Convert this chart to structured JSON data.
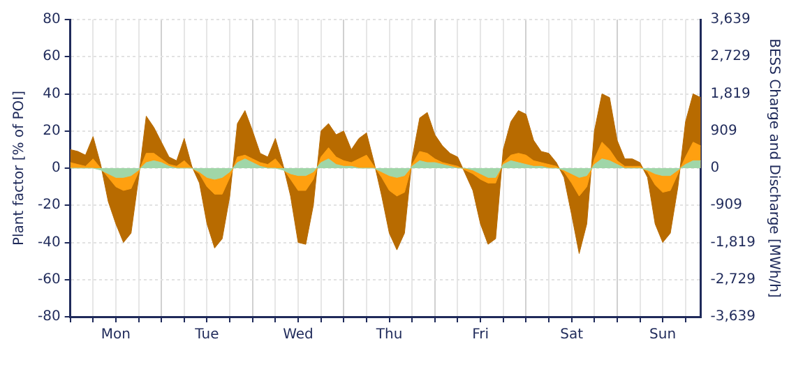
{
  "chart_data": {
    "type": "area",
    "ylabel": "Plant factor [% of POI]",
    "y2label": "BESS Charge and Discharge [MWh/h]",
    "categories": [
      null,
      null,
      null,
      null,
      null,
      null,
      "Mon",
      null,
      null,
      null,
      null,
      null,
      null,
      null,
      null,
      null,
      null,
      null,
      "Tue",
      null,
      null,
      null,
      null,
      null,
      null,
      null,
      null,
      null,
      null,
      null,
      "Wed",
      null,
      null,
      null,
      null,
      null,
      null,
      null,
      null,
      null,
      null,
      null,
      "Thu",
      null,
      null,
      null,
      null,
      null,
      null,
      null,
      null,
      null,
      null,
      null,
      "Fri",
      null,
      null,
      null,
      null,
      null,
      null,
      null,
      null,
      null,
      null,
      null,
      "Sat",
      null,
      null,
      null,
      null,
      null,
      null,
      null,
      null,
      null,
      null,
      null,
      "Sun",
      null,
      null,
      null,
      null,
      null
    ],
    "series": [
      {
        "color": "#b86b00",
        "values": [
          10,
          9,
          7,
          17,
          2,
          -18,
          -30,
          -40,
          -35,
          -5,
          28,
          22,
          14,
          6,
          4,
          16,
          1,
          -8,
          -30,
          -43,
          -38,
          -15,
          24,
          31,
          20,
          8,
          6,
          16,
          2,
          -15,
          -40,
          -41,
          -20,
          20,
          24,
          18,
          20,
          10,
          16,
          19,
          3,
          -15,
          -35,
          -44,
          -35,
          5,
          27,
          30,
          18,
          12,
          8,
          6,
          -3,
          -12,
          -30,
          -41,
          -38,
          10,
          25,
          31,
          29,
          15,
          9,
          8,
          3,
          -5,
          -25,
          -46,
          -30,
          20,
          40,
          38,
          15,
          5,
          5,
          3,
          -5,
          -30,
          -40,
          -35,
          -10,
          25,
          40,
          38
        ]
      },
      {
        "color": "#ffa010",
        "values": [
          3,
          2,
          1,
          5,
          0,
          -5,
          -10,
          -12,
          -11,
          -2,
          8,
          8,
          5,
          2,
          1,
          4,
          0,
          -3,
          -10,
          -14,
          -14,
          -5,
          6,
          7,
          5,
          3,
          2,
          5,
          0,
          -6,
          -12,
          -12,
          -6,
          6,
          11,
          6,
          4,
          3,
          5,
          7,
          1,
          -5,
          -12,
          -15,
          -13,
          2,
          9,
          8,
          5,
          3,
          2,
          1,
          -1,
          -3,
          -6,
          -8,
          -8,
          3,
          7,
          8,
          7,
          4,
          3,
          2,
          1,
          -2,
          -8,
          -15,
          -10,
          5,
          14,
          10,
          4,
          1,
          1,
          1,
          -2,
          -9,
          -13,
          -12,
          -3,
          6,
          14,
          12
        ]
      },
      {
        "color": "#a0d6a8",
        "values": [
          0,
          0,
          0,
          0,
          -1,
          -3,
          -5,
          -5,
          -4,
          -1,
          3,
          4,
          3,
          1,
          0,
          0,
          0,
          -2,
          -5,
          -6,
          -5,
          -2,
          3,
          5,
          3,
          1,
          0,
          0,
          -1,
          -3,
          -4,
          -4,
          -2,
          3,
          5,
          2,
          1,
          1,
          0,
          0,
          0,
          -2,
          -4,
          -5,
          -4,
          1,
          4,
          3,
          3,
          2,
          1,
          0,
          0,
          -1,
          -3,
          -5,
          -5,
          2,
          4,
          3,
          2,
          1,
          1,
          0,
          0,
          -1,
          -3,
          -5,
          -4,
          2,
          5,
          4,
          2,
          0,
          0,
          0,
          -1,
          -3,
          -4,
          -4,
          -1,
          2,
          4,
          4
        ]
      }
    ],
    "ylim": [
      -80,
      80
    ],
    "yticks": [
      -80,
      -60,
      -40,
      -20,
      0,
      20,
      40,
      60,
      80
    ],
    "y2lim": [
      -3639,
      3639
    ],
    "y2ticks": [
      {
        "value": -3639,
        "label": "-3,639"
      },
      {
        "value": -2729,
        "label": "-2,729"
      },
      {
        "value": -1819,
        "label": "-1,819"
      },
      {
        "value": -909,
        "label": "-909"
      },
      {
        "value": 0,
        "label": "0"
      },
      {
        "value": 909,
        "label": "909"
      },
      {
        "value": 1819,
        "label": "1,819"
      },
      {
        "value": 2729,
        "label": "2,729"
      },
      {
        "value": 3639,
        "label": "3,639"
      }
    ],
    "grid": true,
    "legend": false
  }
}
